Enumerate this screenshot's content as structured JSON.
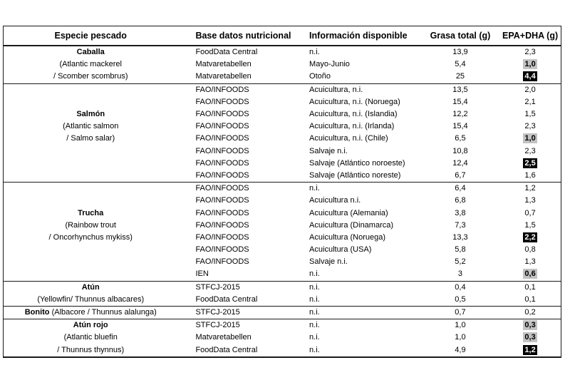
{
  "colors": {
    "highlight_gray": "#c2c2c2",
    "highlight_black": "#000000",
    "text_on_black": "#ffffff",
    "border": "#1a1a1a"
  },
  "table": {
    "headers": [
      "Especie pescado",
      "Base datos nutricional",
      "Información disponible",
      "Grasa total (g)",
      "EPA+DHA (g)"
    ],
    "groups": [
      {
        "name": "Caballa",
        "rows": [
          {
            "species": [
              {
                "t": "Caballa",
                "b": true
              }
            ],
            "db": "FoodData Central",
            "info": "n.i.",
            "fat": "13,9",
            "epa": "2,3",
            "hl": "none"
          },
          {
            "species": [
              {
                "t": "(Atlantic mackerel",
                "b": false
              }
            ],
            "db": "Matvaretabellen",
            "info": "Mayo-Junio",
            "fat": "5,4",
            "epa": "1,0",
            "hl": "gray"
          },
          {
            "species": [
              {
                "t": "/ Scomber scombrus)",
                "b": false
              }
            ],
            "db": "Matvaretabellen",
            "info": "Otoño",
            "fat": "25",
            "epa": "4,4",
            "hl": "black"
          }
        ]
      },
      {
        "name": "Salmón",
        "rows": [
          {
            "species": [],
            "db": "FAO/INFOODS",
            "info": "Acuicultura, n.i.",
            "fat": "13,5",
            "epa": "2,0",
            "hl": "none"
          },
          {
            "species": [],
            "db": "FAO/INFOODS",
            "info": "Acuicultura, n.i. (Noruega)",
            "fat": "15,4",
            "epa": "2,1",
            "hl": "none"
          },
          {
            "species": [
              {
                "t": "Salmón",
                "b": true
              }
            ],
            "db": "FAO/INFOODS",
            "info": "Acuicultura, n.i. (Islandia)",
            "fat": "12,2",
            "epa": "1,5",
            "hl": "none"
          },
          {
            "species": [
              {
                "t": "(Atlantic salmon",
                "b": false
              }
            ],
            "db": "FAO/INFOODS",
            "info": "Acuicultura, n.i. (Irlanda)",
            "fat": "15,4",
            "epa": "2,3",
            "hl": "none"
          },
          {
            "species": [
              {
                "t": "/ Salmo salar)",
                "b": false
              }
            ],
            "db": "FAO/INFOODS",
            "info": "Acuicultura, n.i. (Chile)",
            "fat": "6,5",
            "epa": "1,0",
            "hl": "gray"
          },
          {
            "species": [],
            "db": "FAO/INFOODS",
            "info": "Salvaje n.i.",
            "fat": "10,8",
            "epa": "2,3",
            "hl": "none"
          },
          {
            "species": [],
            "db": "FAO/INFOODS",
            "info": "Salvaje (Atlántico noroeste)",
            "fat": "12,4",
            "epa": "2,5",
            "hl": "black"
          },
          {
            "species": [],
            "db": "FAO/INFOODS",
            "info": "Salvaje (Atlántico noreste)",
            "fat": "6,7",
            "epa": "1,6",
            "hl": "none"
          }
        ]
      },
      {
        "name": "Trucha",
        "rows": [
          {
            "species": [],
            "db": "FAO/INFOODS",
            "info": "n.i.",
            "fat": "6,4",
            "epa": "1,2",
            "hl": "none"
          },
          {
            "species": [],
            "db": "FAO/INFOODS",
            "info": "Acuicultura n.i.",
            "fat": "6,8",
            "epa": "1,3",
            "hl": "none"
          },
          {
            "species": [
              {
                "t": "Trucha",
                "b": true
              }
            ],
            "db": "FAO/INFOODS",
            "info": "Acuicultura (Alemania)",
            "fat": "3,8",
            "epa": "0,7",
            "hl": "none"
          },
          {
            "species": [
              {
                "t": "(Rainbow trout",
                "b": false
              }
            ],
            "db": "FAO/INFOODS",
            "info": "Acuicultura (Dinamarca)",
            "fat": "7,3",
            "epa": "1,5",
            "hl": "none"
          },
          {
            "species": [
              {
                "t": "/ Oncorhynchus mykiss)",
                "b": false
              }
            ],
            "db": "FAO/INFOODS",
            "info": "Acuicultura (Noruega)",
            "fat": "13,3",
            "epa": "2,2",
            "hl": "black"
          },
          {
            "species": [],
            "db": "FAO/INFOODS",
            "info": "Acuicultura (USA)",
            "fat": "5,8",
            "epa": "0,8",
            "hl": "none"
          },
          {
            "species": [],
            "db": "FAO/INFOODS",
            "info": "Salvaje n.i.",
            "fat": "5,2",
            "epa": "1,3",
            "hl": "none"
          },
          {
            "species": [],
            "db": "IEN",
            "info": "n.i.",
            "fat": "3",
            "epa": "0,6",
            "hl": "gray"
          }
        ]
      },
      {
        "name": "Atún",
        "rows": [
          {
            "species": [
              {
                "t": "Atún",
                "b": true
              }
            ],
            "db": "STFCJ-2015",
            "info": "n.i.",
            "fat": "0,4",
            "epa": "0,1",
            "hl": "none"
          },
          {
            "species": [
              {
                "t": "(Yellowfin/ Thunnus albacares)",
                "b": false
              }
            ],
            "db": "FoodData Central",
            "info": "n.i.",
            "fat": "0,5",
            "epa": "0,1",
            "hl": "none"
          }
        ]
      },
      {
        "name": "Bonito",
        "rows": [
          {
            "species": [
              {
                "t": "Bonito",
                "b": true
              },
              {
                "t": " (Albacore / Thunnus alalunga)",
                "b": false
              }
            ],
            "db": "STFCJ-2015",
            "info": "n.i.",
            "fat": "0,7",
            "epa": "0,2",
            "hl": "none"
          }
        ]
      },
      {
        "name": "Atún rojo",
        "rows": [
          {
            "species": [
              {
                "t": "Atún rojo",
                "b": true
              }
            ],
            "db": "STFCJ-2015",
            "info": "n.i.",
            "fat": "1,0",
            "epa": "0,3",
            "hl": "gray"
          },
          {
            "species": [
              {
                "t": "(Atlantic bluefin",
                "b": false
              }
            ],
            "db": "Matvaretabellen",
            "info": "n.i.",
            "fat": "1,0",
            "epa": "0,3",
            "hl": "gray"
          },
          {
            "species": [
              {
                "t": "/ Thunnus thynnus)",
                "b": false
              }
            ],
            "db": "FoodData Central",
            "info": "n.i.",
            "fat": "4,9",
            "epa": "1,2",
            "hl": "black"
          }
        ]
      }
    ]
  }
}
